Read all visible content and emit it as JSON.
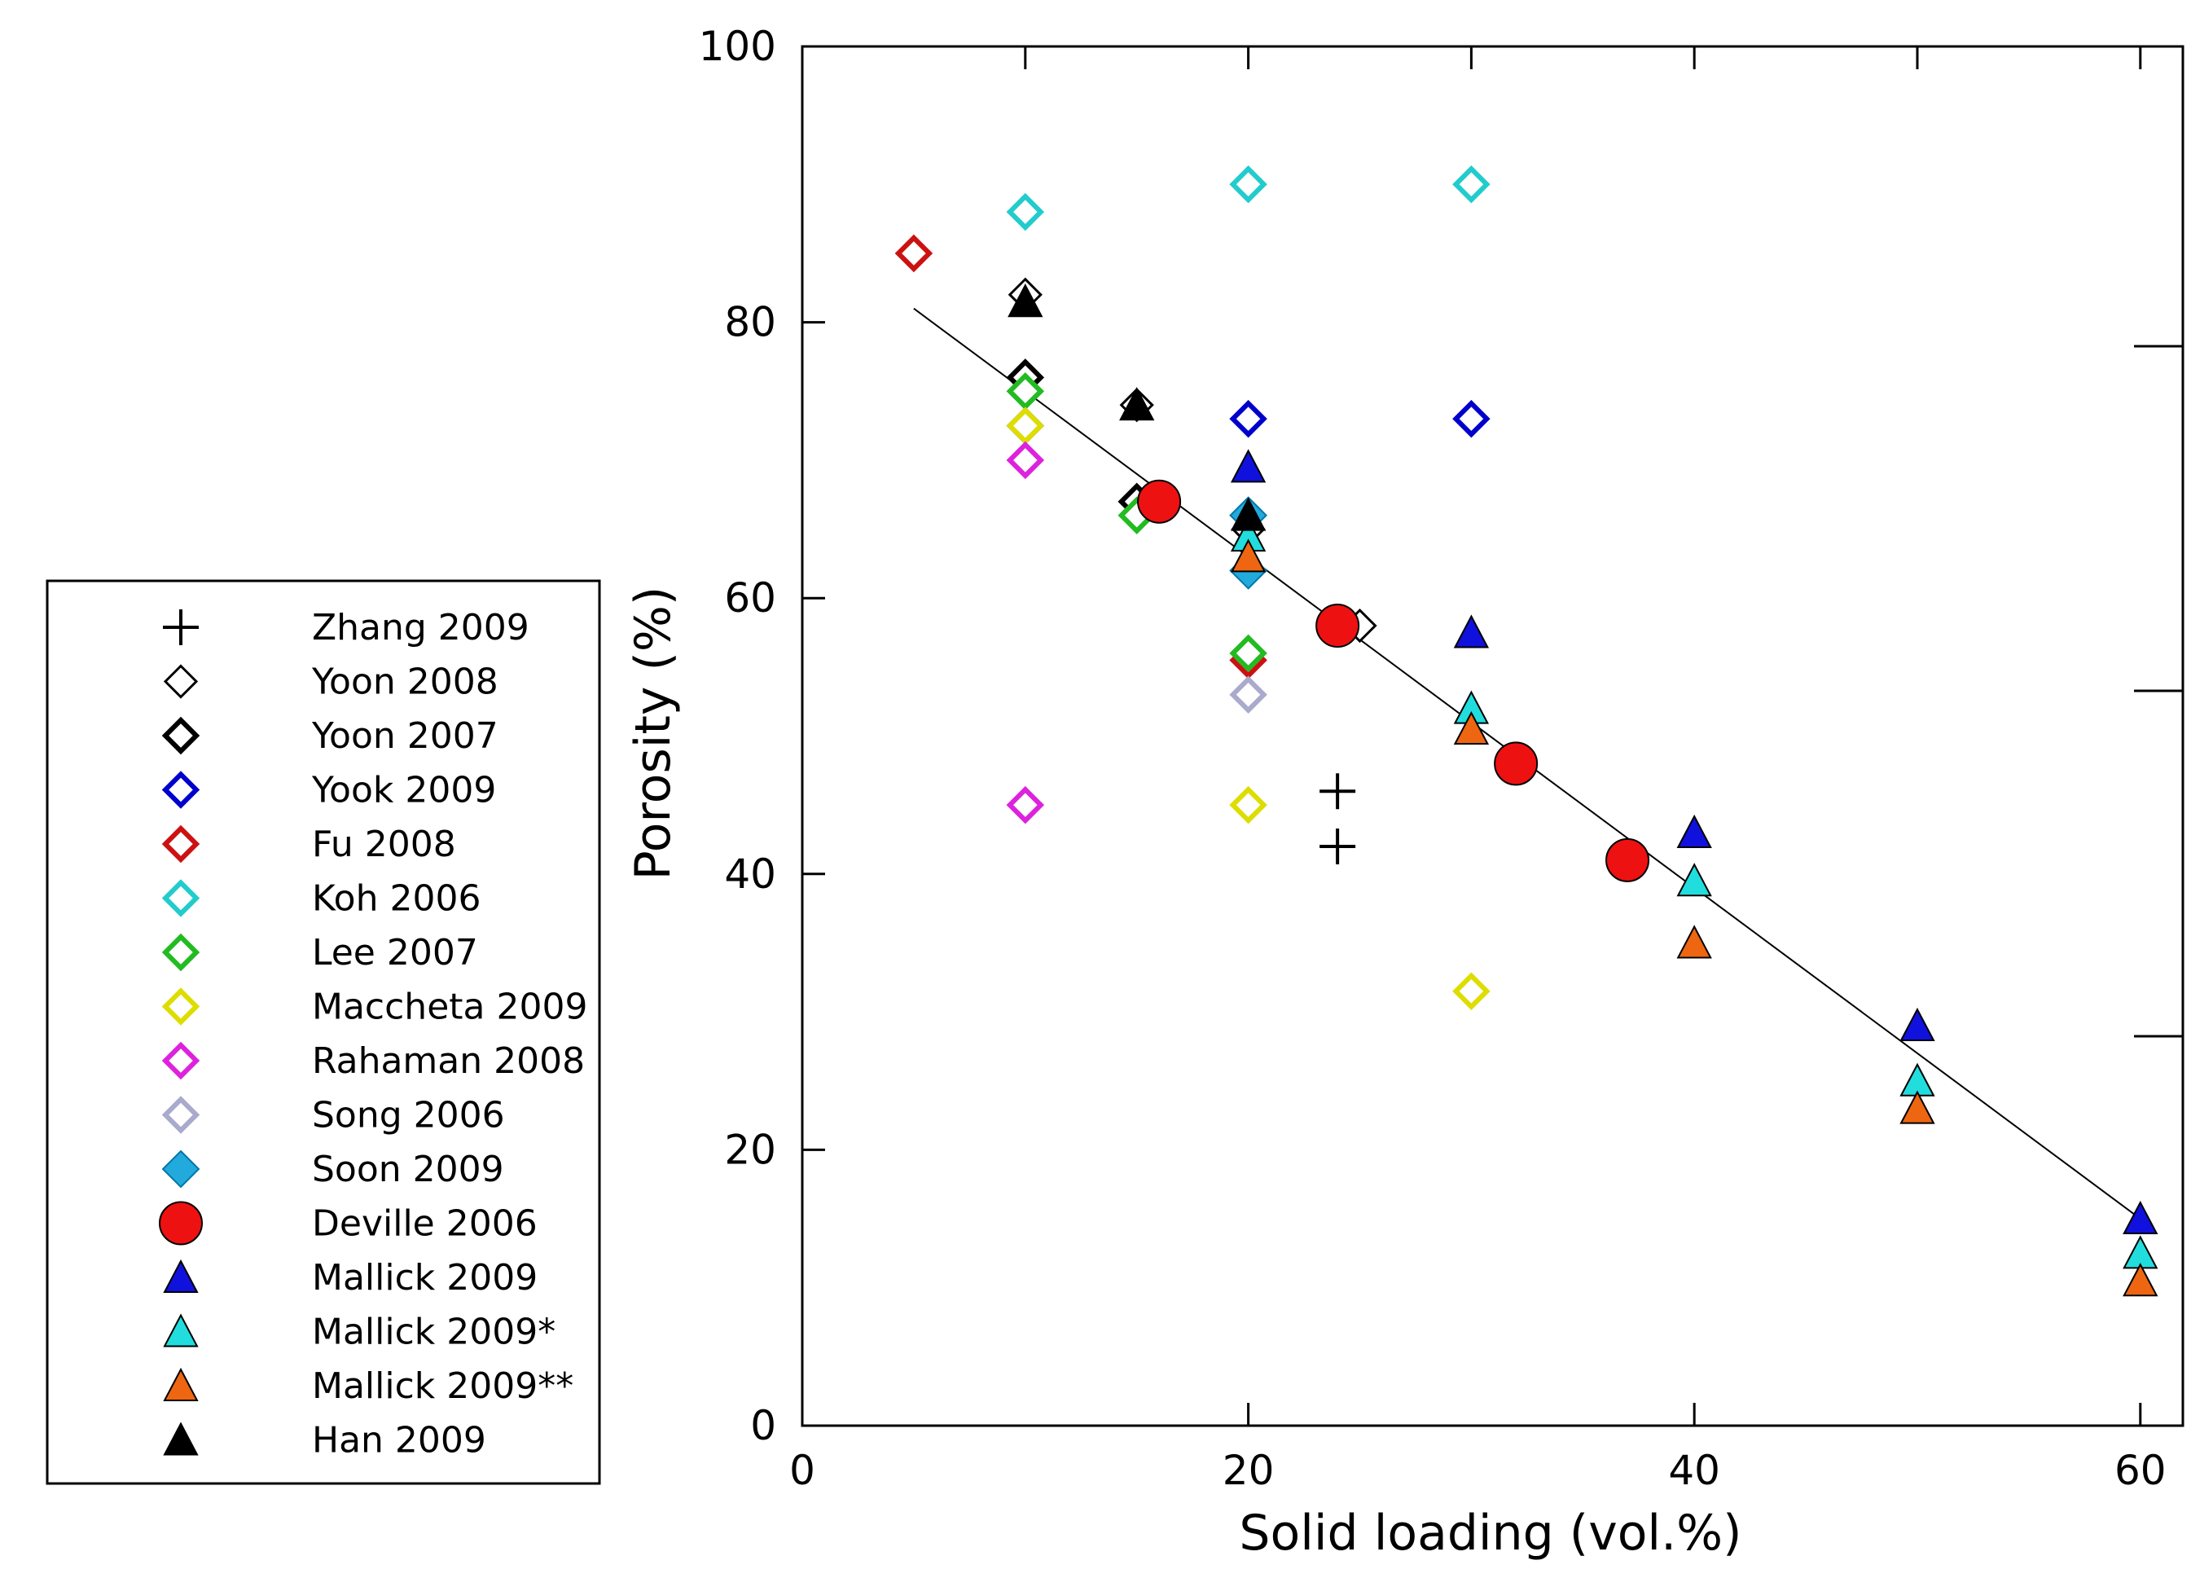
{
  "chart_data": {
    "type": "scatter",
    "title": "",
    "xlabel": "Solid loading (vol.%)",
    "ylabel": "Porosity (%)",
    "xlim": [
      0,
      62
    ],
    "ylim": [
      0,
      100
    ],
    "xticks": [
      0,
      20,
      40,
      60
    ],
    "yticks": [
      0,
      20,
      40,
      60,
      80,
      100
    ],
    "legend_position": "left",
    "trendline": {
      "x": [
        5,
        60
      ],
      "y": [
        81,
        15
      ]
    },
    "series": [
      {
        "name": "Zhang 2009",
        "marker": "plus",
        "color": "#000000",
        "points": [
          [
            24,
            46
          ],
          [
            24,
            42
          ]
        ]
      },
      {
        "name": "Yoon 2008",
        "marker": "diamond-open",
        "color": "#000000",
        "thin": true,
        "points": [
          [
            10,
            82
          ],
          [
            15,
            74
          ],
          [
            20,
            65
          ],
          [
            25,
            58
          ]
        ]
      },
      {
        "name": "Yoon 2007",
        "marker": "diamond-open",
        "color": "#000000",
        "points": [
          [
            10,
            76
          ],
          [
            15,
            67
          ]
        ]
      },
      {
        "name": "Yook 2009",
        "marker": "diamond-open",
        "color": "#0000cc",
        "points": [
          [
            10,
            72.5
          ],
          [
            20,
            73
          ],
          [
            30,
            73
          ]
        ]
      },
      {
        "name": "Fu 2008",
        "marker": "diamond-open",
        "color": "#cc1111",
        "points": [
          [
            5,
            85
          ],
          [
            20,
            55.5
          ]
        ]
      },
      {
        "name": "Koh 2006",
        "marker": "diamond-open",
        "color": "#22cccc",
        "points": [
          [
            10,
            88
          ],
          [
            20,
            90
          ],
          [
            30,
            90
          ]
        ]
      },
      {
        "name": "Lee 2007",
        "marker": "diamond-open",
        "color": "#22bb22",
        "points": [
          [
            10,
            75
          ],
          [
            15,
            66
          ],
          [
            20,
            56
          ]
        ]
      },
      {
        "name": "Maccheta 2009",
        "marker": "diamond-open",
        "color": "#dddd00",
        "points": [
          [
            10,
            72.5
          ],
          [
            20,
            45
          ],
          [
            30,
            31.5
          ]
        ]
      },
      {
        "name": "Rahaman 2008",
        "marker": "diamond-open",
        "color": "#dd22dd",
        "points": [
          [
            10,
            70
          ],
          [
            10,
            45
          ]
        ]
      },
      {
        "name": "Song 2006",
        "marker": "diamond-open",
        "color": "#aaaacc",
        "points": [
          [
            20,
            53
          ]
        ]
      },
      {
        "name": "Soon 2009",
        "marker": "diamond-filled",
        "color": "#22aadd",
        "points": [
          [
            20,
            66
          ],
          [
            20,
            62
          ]
        ]
      },
      {
        "name": "Deville 2006",
        "marker": "circle-filled",
        "color": "#ee1111",
        "points": [
          [
            16,
            67
          ],
          [
            24,
            58
          ],
          [
            32,
            48
          ],
          [
            37,
            41
          ]
        ]
      },
      {
        "name": "Mallick 2009",
        "marker": "triangle-filled",
        "color": "#1111dd",
        "points": [
          [
            20,
            69.5
          ],
          [
            30,
            57.5
          ],
          [
            40,
            43
          ],
          [
            50,
            29
          ],
          [
            60,
            15
          ]
        ]
      },
      {
        "name": "Mallick 2009*",
        "marker": "triangle-filled",
        "color": "#22dddd",
        "points": [
          [
            20,
            64.5
          ],
          [
            30,
            52
          ],
          [
            40,
            39.5
          ],
          [
            50,
            25
          ],
          [
            60,
            12.5
          ]
        ]
      },
      {
        "name": "Mallick 2009**",
        "marker": "triangle-filled",
        "color": "#ee6611",
        "points": [
          [
            20,
            63
          ],
          [
            30,
            50.5
          ],
          [
            40,
            35
          ],
          [
            50,
            23
          ],
          [
            60,
            10.5
          ]
        ]
      },
      {
        "name": "Han 2009",
        "marker": "triangle-filled",
        "color": "#000000",
        "points": [
          [
            10,
            81.5
          ],
          [
            15,
            74
          ],
          [
            20,
            66
          ]
        ]
      }
    ]
  }
}
